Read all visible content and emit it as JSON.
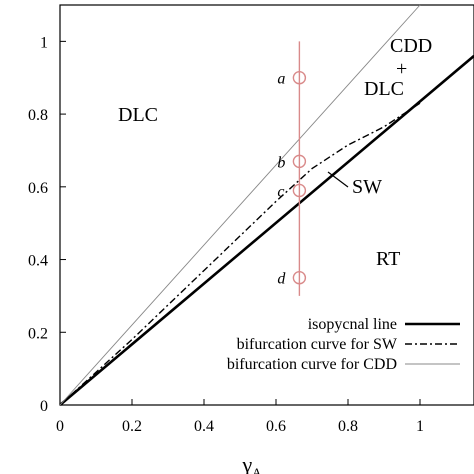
{
  "chart_data": {
    "type": "line",
    "title": "",
    "xlabel": "γ",
    "xlabel_sub": "A",
    "ylabel": "",
    "xlim": [
      0,
      1.15
    ],
    "ylim": [
      0,
      1.1
    ],
    "xticks": [
      0,
      0.2,
      0.4,
      0.6,
      0.8,
      1
    ],
    "yticks": [
      0,
      0.2,
      0.4,
      0.6,
      0.8,
      1
    ],
    "xtick_labels": [
      "0",
      "0.2",
      "0.4",
      "0.6",
      "0.8",
      "1"
    ],
    "ytick_labels": [
      "0",
      "0.2",
      "0.4",
      "0.6",
      "0.8",
      "1"
    ],
    "grid": false,
    "legend_position": "bottom-right",
    "series": [
      {
        "name": "isopycnal line",
        "style": "solid-thick",
        "color": "#000000",
        "x": [
          0,
          1.15
        ],
        "y": [
          0,
          0.96
        ]
      },
      {
        "name": "bifurcation curve for SW",
        "style": "dash-dot",
        "color": "#000000",
        "x": [
          0,
          0.2,
          0.4,
          0.6,
          0.7,
          0.8,
          0.9,
          1.0
        ],
        "y": [
          0,
          0.18,
          0.37,
          0.56,
          0.65,
          0.715,
          0.765,
          0.83
        ]
      },
      {
        "name": "bifurcation curve for CDD",
        "style": "solid-thin",
        "color": "#888888",
        "x": [
          0,
          1.0
        ],
        "y": [
          0,
          1.1
        ]
      }
    ],
    "vertical_line": {
      "x": 0.665,
      "y_range": [
        0.3,
        1.0
      ],
      "color": "#d98a8a"
    },
    "points": [
      {
        "label": "a",
        "x": 0.665,
        "y": 0.9
      },
      {
        "label": "b",
        "x": 0.665,
        "y": 0.67
      },
      {
        "label": "c",
        "x": 0.665,
        "y": 0.59
      },
      {
        "label": "d",
        "x": 0.665,
        "y": 0.35
      }
    ],
    "annotations": {
      "dlc": "DLC",
      "cdd": "CDD",
      "plus": "+",
      "dlc2": "DLC",
      "sw": "SW",
      "rt": "RT"
    }
  }
}
